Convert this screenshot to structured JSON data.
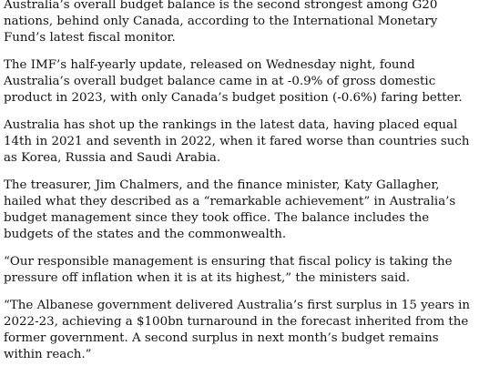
{
  "article": {
    "paragraphs": [
      "Australia’s overall budget balance is the second strongest among G20 nations, behind only Canada, according to the International Monetary Fund’s latest fiscal monitor.",
      "The IMF’s half-yearly update, released on Wednesday night, found Australia’s overall budget balance came in at -0.9% of gross domestic product in 2023, with only Canada’s budget position (-0.6%) faring better.",
      "Australia has shot up the rankings in the latest data, having placed equal 14th in 2021 and seventh in 2022, when it fared worse than countries such as Korea, Russia and Saudi Arabia.",
      "The treasurer, Jim Chalmers, and the finance minister, Katy Gallagher, hailed what they described as a “remarkable achievement” in Australia’s budget management since they took office. The balance includes the budgets of the states and the commonwealth.",
      "“Our responsible management is ensuring that fiscal policy is taking the pressure off inflation when it is at its highest,” the ministers said.",
      "“The Albanese government delivered Australia’s first surplus in 15 years in 2022-23, achieving a $100bn turnaround in the forecast inherited from the former government. A second surplus in next month’s budget remains within reach.”"
    ]
  }
}
